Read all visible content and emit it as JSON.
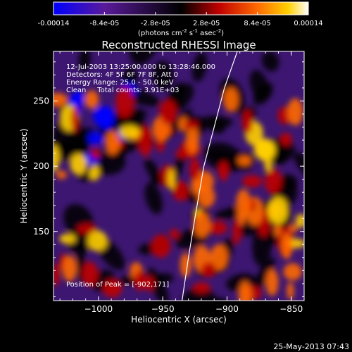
{
  "colorbar": {
    "tick_labels": [
      "-0.00014",
      "-8.4e-05",
      "-2.8e-05",
      "2.8e-05",
      "8.4e-05",
      "0.00014"
    ],
    "tick_values": [
      -0.00014,
      -8.4e-05,
      -2.8e-05,
      2.8e-05,
      8.4e-05,
      0.00014
    ],
    "range": [
      -0.00014,
      0.00014
    ],
    "units_label_parts": {
      "a": "(photons cm",
      "sup1": "-2",
      "b": " s",
      "sup2": "-1",
      "c": " asec",
      "sup3": "-2",
      "d": ")"
    },
    "colormap": [
      "#0000ff",
      "#5a1a9a",
      "#000000",
      "#c00000",
      "#ff6a00",
      "#ffd000",
      "#ffffff"
    ]
  },
  "chart_data": {
    "type": "heatmap",
    "title": "Reconstructed RHESSI Image",
    "xlabel": "Heliocentric X (arcsec)",
    "ylabel": "Heliocentric Y (arcsec)",
    "xlim": [
      -1035,
      -840
    ],
    "ylim": [
      97,
      288
    ],
    "x_ticks": [
      -1000,
      -950,
      -900,
      -850
    ],
    "x_tick_labels": [
      "−1000",
      "−950",
      "−900",
      "−850"
    ],
    "y_ticks": [
      150,
      200,
      250
    ],
    "y_tick_labels": [
      "150",
      "200",
      "250"
    ],
    "limb_curve": [
      [
        -935,
        97
      ],
      [
        -930,
        130
      ],
      [
        -925,
        160
      ],
      [
        -918,
        200
      ],
      [
        -910,
        230
      ],
      [
        -902,
        260
      ],
      [
        -892,
        288
      ]
    ],
    "peak_position": [
      -902,
      171
    ],
    "grid": false,
    "legend": "none"
  },
  "annotations": {
    "line1": "12-Jul-2003 13:25:00.000 to 13:28:46.000",
    "line2": "Detectors: 4F 5F 6F 7F 8F, Att 0",
    "line3": "Energy Range: 25.0 - 50.0 keV",
    "line4": "Clean     Total counts: 3.91E+03",
    "peak": "Position of Peak = [-902,171]"
  },
  "footer": {
    "timestamp": "25-May-2013 07:43"
  }
}
